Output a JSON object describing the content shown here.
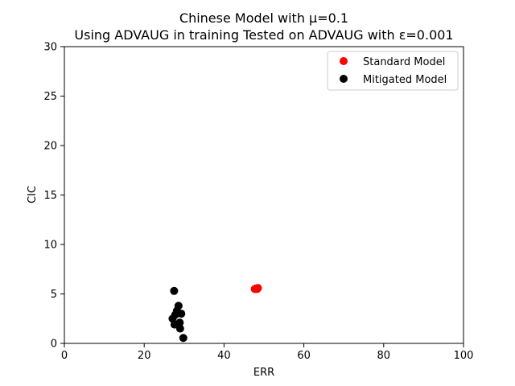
{
  "chart_data": {
    "type": "scatter",
    "title_line1": "Chinese Model with μ=0.1",
    "title_line2": "Using ADVAUG in training Tested on ADVAUG with ε=0.001",
    "xlabel": "ERR",
    "ylabel": "CIC",
    "xlim": [
      0,
      100
    ],
    "ylim": [
      0,
      30
    ],
    "xticks": [
      0,
      20,
      40,
      60,
      80,
      100
    ],
    "yticks": [
      0,
      5,
      10,
      15,
      20,
      25,
      30
    ],
    "grid": false,
    "legend_position": "top-right",
    "series": [
      {
        "name": "Standard Model",
        "color": "#ff0000",
        "points": [
          {
            "x": 48.0,
            "y": 5.55
          },
          {
            "x": 48.3,
            "y": 5.5
          },
          {
            "x": 47.7,
            "y": 5.5
          },
          {
            "x": 48.5,
            "y": 5.6
          }
        ]
      },
      {
        "name": "Mitigated Model",
        "color": "#000000",
        "points": [
          {
            "x": 27.5,
            "y": 5.3
          },
          {
            "x": 28.6,
            "y": 3.8
          },
          {
            "x": 28.2,
            "y": 3.3
          },
          {
            "x": 27.8,
            "y": 2.9
          },
          {
            "x": 29.3,
            "y": 3.0
          },
          {
            "x": 27.1,
            "y": 2.5
          },
          {
            "x": 28.9,
            "y": 2.1
          },
          {
            "x": 27.6,
            "y": 1.9
          },
          {
            "x": 29.0,
            "y": 1.5
          },
          {
            "x": 29.8,
            "y": 0.55
          }
        ]
      }
    ]
  }
}
